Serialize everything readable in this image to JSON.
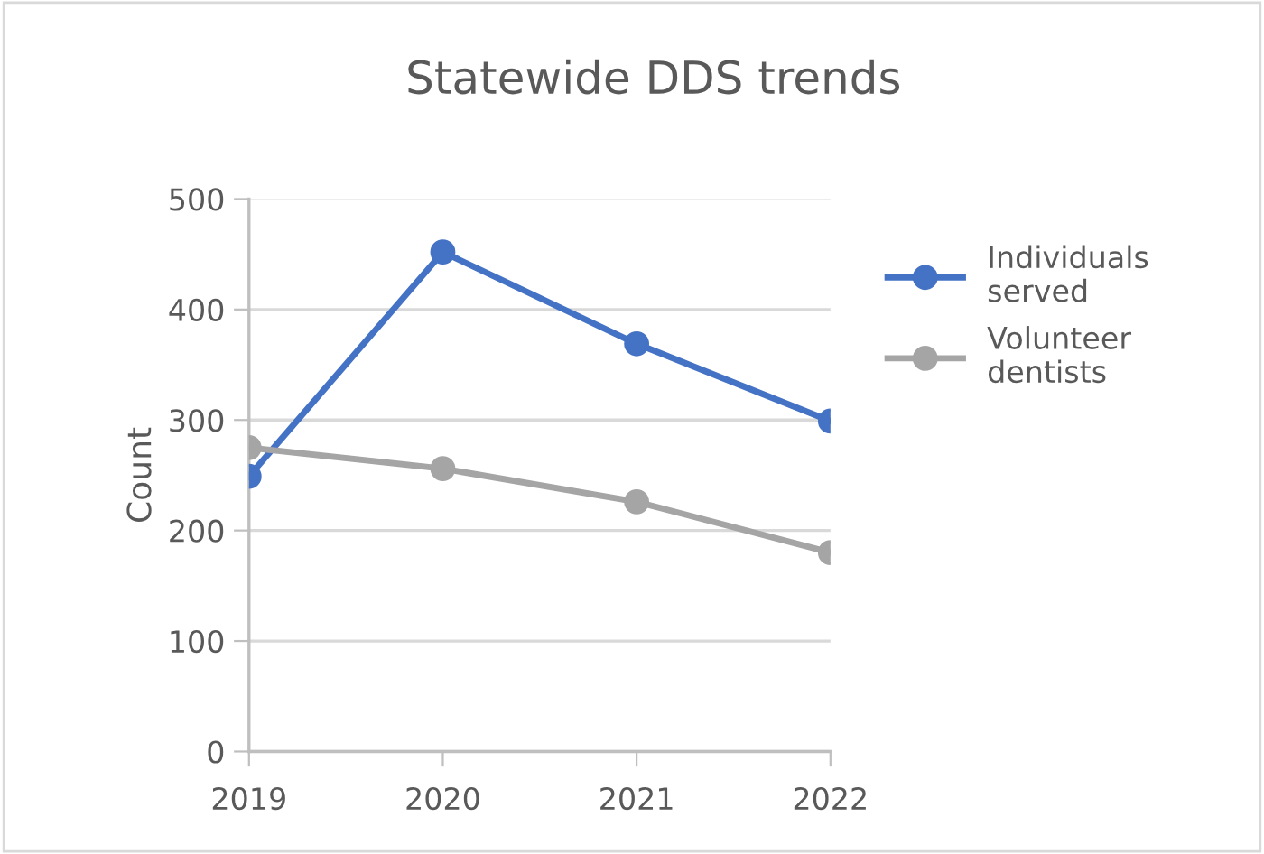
{
  "chart_data": {
    "type": "line",
    "title": "Statewide DDS trends",
    "ylabel": "Count",
    "categories": [
      "2019",
      "2020",
      "2021",
      "2022"
    ],
    "series": [
      {
        "name": "Individuals served",
        "color": "#4472c4",
        "values": [
          249,
          452,
          369,
          299
        ]
      },
      {
        "name": "Volunteer dentists",
        "color": "#a5a5a5",
        "values": [
          275,
          256,
          226,
          180
        ]
      }
    ],
    "ylim": [
      0,
      500
    ],
    "yticks": [
      0,
      100,
      200,
      300,
      400,
      500
    ],
    "grid": "y",
    "legend": "right",
    "marker": "circle",
    "line_style": "solid"
  }
}
